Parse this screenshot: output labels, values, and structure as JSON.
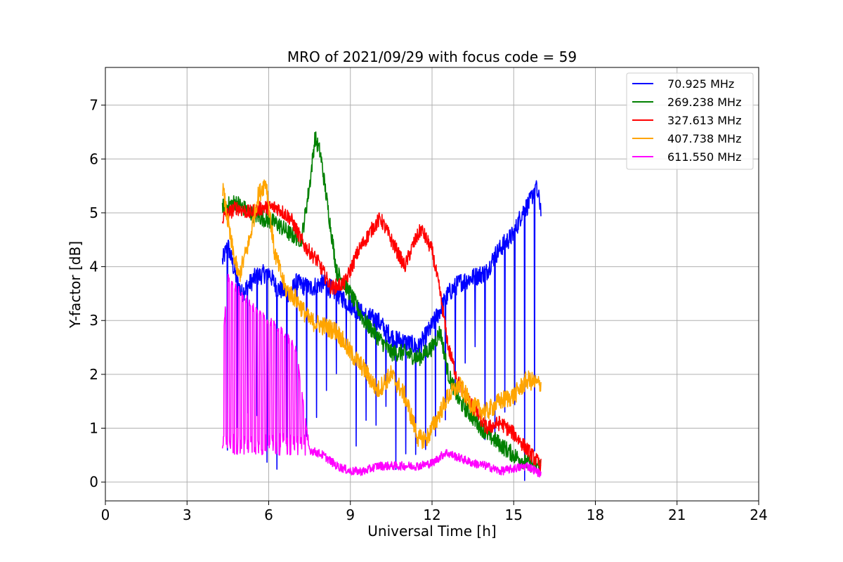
{
  "chart_data": {
    "type": "line",
    "title": "MRO of 2021/09/29 with focus code = 59",
    "xlabel": "Universal Time [h]",
    "ylabel": "Y-factor [dB]",
    "xlim": [
      0,
      24
    ],
    "ylim": [
      -0.35,
      7.7
    ],
    "xticks": [
      0,
      3,
      6,
      9,
      12,
      15,
      18,
      21,
      24
    ],
    "yticks": [
      0,
      1,
      2,
      3,
      4,
      5,
      6,
      7
    ],
    "xtick_labels": [
      "0",
      "3",
      "6",
      "9",
      "12",
      "15",
      "18",
      "21",
      "24"
    ],
    "ytick_labels": [
      "0",
      "1",
      "2",
      "3",
      "4",
      "5",
      "6",
      "7"
    ],
    "grid": true,
    "legend_position": "top-right",
    "series": [
      {
        "name": "  70.925 MHz",
        "color": "#0000ff",
        "x": [
          4.3,
          4.5,
          4.8,
          5.0,
          5.5,
          6.0,
          6.3,
          6.8,
          7.0,
          7.5,
          8.0,
          8.5,
          9.0,
          9.5,
          10.0,
          10.5,
          11.0,
          11.5,
          12.0,
          12.3,
          12.6,
          13.0,
          13.5,
          14.0,
          14.3,
          14.6,
          15.0,
          15.3,
          15.6,
          15.8,
          16.0
        ],
        "y": [
          4.1,
          4.4,
          3.8,
          3.5,
          3.8,
          3.9,
          3.6,
          3.5,
          3.7,
          3.6,
          3.7,
          3.5,
          3.3,
          3.1,
          3.0,
          2.7,
          2.6,
          2.5,
          2.9,
          3.2,
          3.5,
          3.7,
          3.8,
          3.9,
          4.2,
          4.4,
          4.6,
          5.0,
          5.2,
          5.5,
          5.1
        ],
        "dip_values": [
          0.5,
          0.8,
          1.0,
          1.2,
          0.0,
          0.2,
          0.4,
          0.6,
          0.8,
          1.0,
          1.5,
          2.0,
          2.5
        ]
      },
      {
        "name": "269.238 MHz",
        "color": "#008000",
        "x": [
          4.3,
          4.8,
          5.3,
          5.8,
          6.3,
          6.8,
          7.2,
          7.5,
          7.7,
          7.9,
          8.2,
          8.5,
          9.0,
          9.5,
          10.0,
          10.5,
          11.0,
          11.5,
          12.0,
          12.3,
          12.6,
          13.0,
          13.5,
          14.0,
          14.5,
          15.0,
          15.5,
          16.0
        ],
        "y": [
          5.1,
          5.2,
          5.0,
          4.9,
          4.8,
          4.6,
          4.5,
          5.5,
          6.4,
          6.1,
          5.0,
          3.9,
          3.5,
          3.0,
          2.7,
          2.4,
          2.4,
          2.3,
          2.5,
          2.8,
          2.0,
          1.5,
          1.2,
          0.9,
          0.7,
          0.5,
          0.35,
          0.3
        ]
      },
      {
        "name": "327.613 MHz",
        "color": "#ff0000",
        "x": [
          4.3,
          4.8,
          5.3,
          5.8,
          6.3,
          6.8,
          7.3,
          7.8,
          8.3,
          8.8,
          9.3,
          9.8,
          10.1,
          10.5,
          11.0,
          11.3,
          11.6,
          12.0,
          12.3,
          12.6,
          13.0,
          13.5,
          14.0,
          14.5,
          15.0,
          15.5,
          16.0
        ],
        "y": [
          4.9,
          5.1,
          5.0,
          5.1,
          5.1,
          4.9,
          4.4,
          4.1,
          3.6,
          3.7,
          4.3,
          4.7,
          4.9,
          4.5,
          4.0,
          4.4,
          4.7,
          4.3,
          3.5,
          2.5,
          1.8,
          1.4,
          1.0,
          1.1,
          0.9,
          0.6,
          0.3
        ]
      },
      {
        "name": "407.738 MHz",
        "color": "#ffa500",
        "x": [
          4.3,
          4.6,
          4.9,
          5.3,
          5.6,
          5.9,
          6.2,
          6.6,
          7.0,
          7.5,
          8.0,
          8.5,
          9.0,
          9.5,
          10.0,
          10.5,
          11.0,
          11.5,
          11.8,
          12.2,
          12.6,
          13.0,
          13.5,
          14.0,
          14.5,
          15.0,
          15.5,
          16.0
        ],
        "y": [
          5.5,
          4.5,
          3.8,
          4.5,
          5.3,
          5.6,
          4.3,
          3.6,
          3.4,
          3.0,
          2.9,
          2.8,
          2.4,
          2.1,
          1.7,
          2.0,
          1.6,
          0.8,
          0.8,
          1.2,
          1.6,
          1.8,
          1.4,
          1.3,
          1.5,
          1.6,
          1.9,
          1.8
        ]
      },
      {
        "name": "611.550 MHz",
        "color": "#ff00ff",
        "x": [
          4.3,
          4.5,
          5.0,
          5.5,
          6.0,
          6.5,
          7.0,
          7.5,
          8.0,
          8.5,
          9.0,
          9.5,
          10.0,
          10.5,
          11.0,
          11.5,
          12.0,
          12.5,
          13.0,
          13.5,
          14.0,
          14.5,
          15.0,
          15.5,
          16.0
        ],
        "y": [
          2.5,
          3.8,
          3.5,
          3.2,
          3.0,
          2.8,
          2.5,
          0.6,
          0.5,
          0.3,
          0.2,
          0.2,
          0.3,
          0.3,
          0.3,
          0.3,
          0.35,
          0.55,
          0.45,
          0.35,
          0.3,
          0.2,
          0.25,
          0.3,
          0.15
        ]
      }
    ]
  }
}
